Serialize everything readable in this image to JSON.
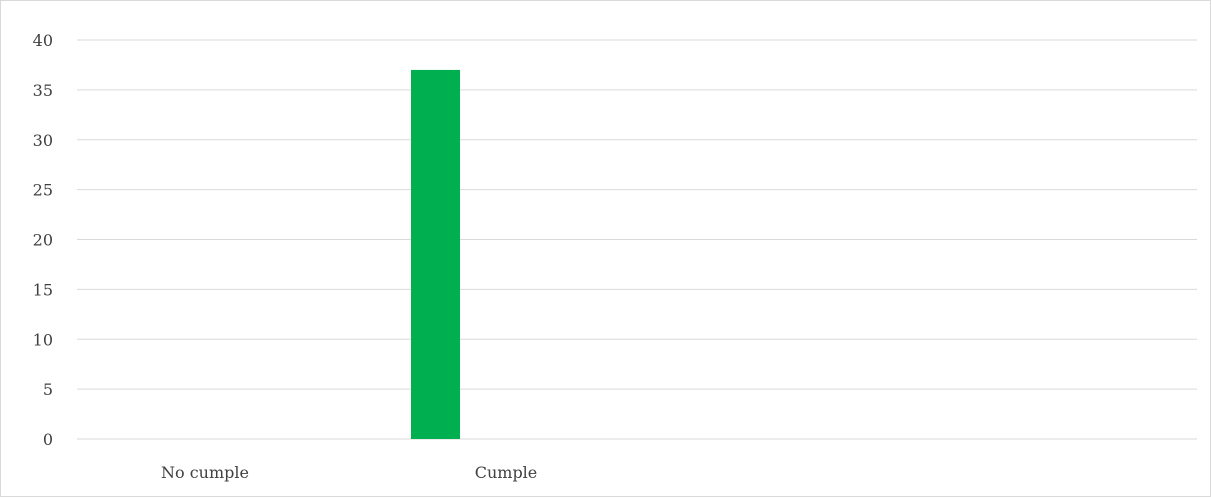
{
  "chart_data": {
    "type": "bar",
    "categories": [
      "No cumple",
      "Cumple"
    ],
    "values": [
      0,
      37
    ],
    "bar_colors": [
      "#00b050",
      "#00b050"
    ],
    "title": "",
    "xlabel": "",
    "ylabel": "",
    "ylim": [
      0,
      40
    ],
    "yticks": [
      0,
      5,
      10,
      15,
      20,
      25,
      30,
      35,
      40
    ],
    "grid": true,
    "gridline_color": "#d9d9d9",
    "legend": "none"
  }
}
